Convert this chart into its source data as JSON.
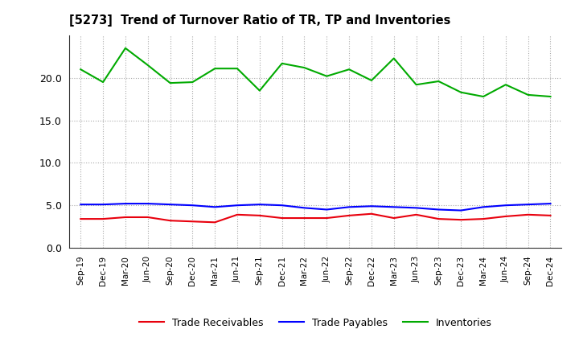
{
  "title": "[5273]  Trend of Turnover Ratio of TR, TP and Inventories",
  "x_labels": [
    "Sep-19",
    "Dec-19",
    "Mar-20",
    "Jun-20",
    "Sep-20",
    "Dec-20",
    "Mar-21",
    "Jun-21",
    "Sep-21",
    "Dec-21",
    "Mar-22",
    "Jun-22",
    "Sep-22",
    "Dec-22",
    "Mar-23",
    "Jun-23",
    "Sep-23",
    "Dec-23",
    "Mar-24",
    "Jun-24",
    "Sep-24",
    "Dec-24"
  ],
  "trade_receivables": [
    3.4,
    3.4,
    3.6,
    3.6,
    3.2,
    3.1,
    3.0,
    3.9,
    3.8,
    3.5,
    3.5,
    3.5,
    3.8,
    4.0,
    3.5,
    3.9,
    3.4,
    3.3,
    3.4,
    3.7,
    3.9,
    3.8
  ],
  "trade_payables": [
    5.1,
    5.1,
    5.2,
    5.2,
    5.1,
    5.0,
    4.8,
    5.0,
    5.1,
    5.0,
    4.7,
    4.5,
    4.8,
    4.9,
    4.8,
    4.7,
    4.5,
    4.4,
    4.8,
    5.0,
    5.1,
    5.2
  ],
  "inventories": [
    21.0,
    19.5,
    23.5,
    21.5,
    19.4,
    19.5,
    21.1,
    21.1,
    18.5,
    21.7,
    21.2,
    20.2,
    21.0,
    19.7,
    22.3,
    19.2,
    19.6,
    18.3,
    17.8,
    19.2,
    18.0,
    17.8
  ],
  "color_tr": "#e8000d",
  "color_tp": "#0000ff",
  "color_inv": "#00aa00",
  "ylim": [
    0,
    25
  ],
  "yticks": [
    0.0,
    5.0,
    10.0,
    15.0,
    20.0
  ],
  "background_color": "#ffffff",
  "grid_color": "#aaaaaa",
  "legend_labels": [
    "Trade Receivables",
    "Trade Payables",
    "Inventories"
  ]
}
